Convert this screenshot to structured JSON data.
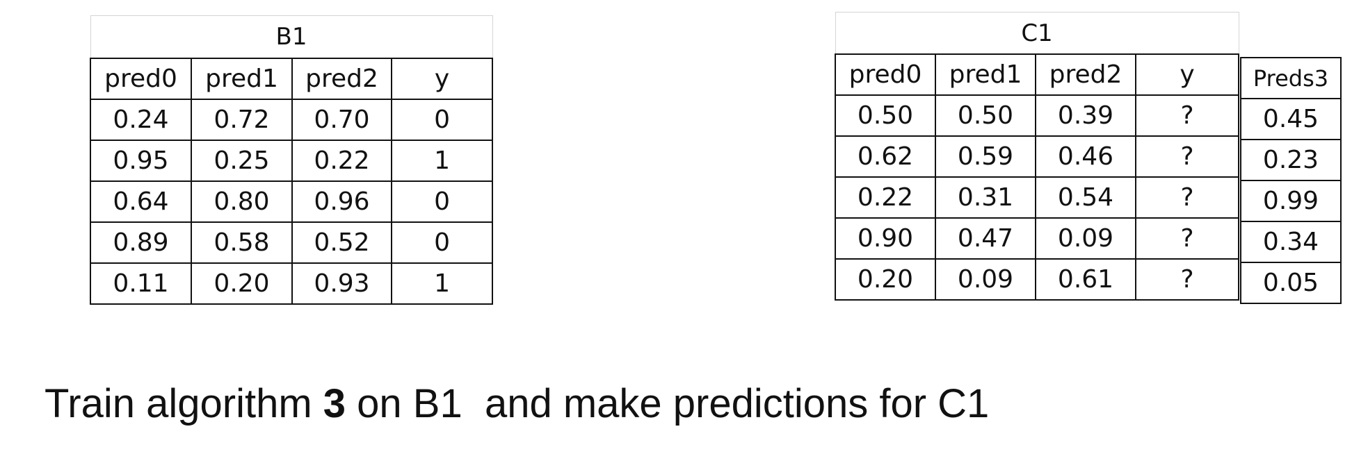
{
  "table_b1": {
    "title": "B1",
    "headers": [
      "pred0",
      "pred1",
      "pred2",
      "y"
    ],
    "rows": [
      [
        "0.24",
        "0.72",
        "0.70",
        "0"
      ],
      [
        "0.95",
        "0.25",
        "0.22",
        "1"
      ],
      [
        "0.64",
        "0.80",
        "0.96",
        "0"
      ],
      [
        "0.89",
        "0.58",
        "0.52",
        "0"
      ],
      [
        "0.11",
        "0.20",
        "0.93",
        "1"
      ]
    ]
  },
  "table_c1": {
    "title": "C1",
    "headers": [
      "pred0",
      "pred1",
      "pred2",
      "y"
    ],
    "rows": [
      [
        "0.50",
        "0.50",
        "0.39",
        "?"
      ],
      [
        "0.62",
        "0.59",
        "0.46",
        "?"
      ],
      [
        "0.22",
        "0.31",
        "0.54",
        "?"
      ],
      [
        "0.90",
        "0.47",
        "0.09",
        "?"
      ],
      [
        "0.20",
        "0.09",
        "0.61",
        "?"
      ]
    ]
  },
  "table_preds3": {
    "header": "Preds3",
    "values": [
      "0.45",
      "0.23",
      "0.99",
      "0.34",
      "0.05"
    ]
  },
  "caption": {
    "before": "Train algorithm ",
    "bold": "3",
    "after": " on B1  and make predictions for C1"
  }
}
